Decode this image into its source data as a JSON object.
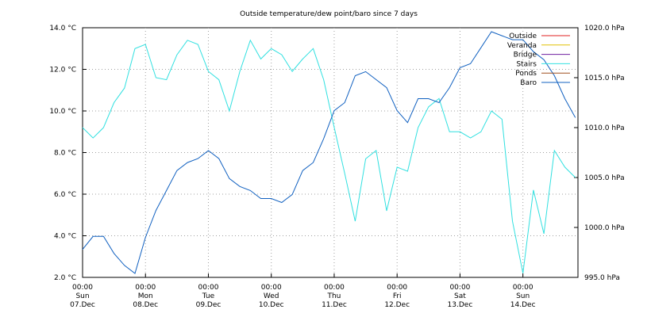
{
  "chart_data": {
    "type": "line",
    "title": "Outside temperature/dew point/baro since 7 days",
    "x": [
      0,
      4,
      8,
      12,
      16,
      20,
      24,
      28,
      32,
      36,
      40,
      44,
      48,
      52,
      56,
      60,
      64,
      68,
      72,
      76,
      80,
      84,
      88,
      92,
      96,
      100,
      104,
      108,
      112,
      116,
      120,
      124,
      128,
      132,
      136,
      140,
      144,
      148,
      152,
      156,
      160,
      164,
      168,
      172,
      176,
      180,
      184,
      188
    ],
    "xlim": [
      0,
      189
    ],
    "xticks": [
      {
        "value": 0,
        "label": [
          "00:00",
          "Sun",
          "07.Dec"
        ]
      },
      {
        "value": 24,
        "label": [
          "00:00",
          "Mon",
          "08.Dec"
        ]
      },
      {
        "value": 48,
        "label": [
          "00:00",
          "Tue",
          "09.Dec"
        ]
      },
      {
        "value": 72,
        "label": [
          "00:00",
          "Wed",
          "10.Dec"
        ]
      },
      {
        "value": 96,
        "label": [
          "00:00",
          "Thu",
          "11.Dec"
        ]
      },
      {
        "value": 120,
        "label": [
          "00:00",
          "Fri",
          "12.Dec"
        ]
      },
      {
        "value": 144,
        "label": [
          "00:00",
          "Sat",
          "13.Dec"
        ]
      },
      {
        "value": 168,
        "label": [
          "00:00",
          "Sun",
          "14.Dec"
        ]
      }
    ],
    "ylim": [
      2,
      14
    ],
    "yticks": [
      {
        "value": 2,
        "label": "2.0 °C"
      },
      {
        "value": 4,
        "label": "4.0 °C"
      },
      {
        "value": 6,
        "label": "6.0 °C"
      },
      {
        "value": 8,
        "label": "8.0 °C"
      },
      {
        "value": 10,
        "label": "10.0 °C"
      },
      {
        "value": 12,
        "label": "12.0 °C"
      },
      {
        "value": 14,
        "label": "14.0 °C"
      }
    ],
    "y2lim": [
      995,
      1020
    ],
    "y2ticks": [
      {
        "value": 995,
        "label": "995.0 hPa"
      },
      {
        "value": 1000,
        "label": "1000.0 hPa"
      },
      {
        "value": 1005,
        "label": "1005.0 hPa"
      },
      {
        "value": 1010,
        "label": "1010.0 hPa"
      },
      {
        "value": 1015,
        "label": "1015.0 hPa"
      },
      {
        "value": 1020,
        "label": "1020.0 hPa"
      }
    ],
    "grid": true,
    "legend": "top-right",
    "series": [
      {
        "name": "Outside",
        "color": "#e02020",
        "values": [
          null,
          null,
          null,
          null,
          null,
          null,
          null,
          null,
          null,
          null,
          null,
          null,
          null,
          null,
          null,
          null,
          null,
          null,
          null,
          null,
          null,
          null,
          null,
          null,
          null,
          null,
          null,
          null,
          null,
          null,
          null,
          null,
          null,
          null,
          null,
          null,
          null,
          null,
          null,
          null,
          null,
          null,
          null,
          null,
          null,
          null,
          null,
          null
        ]
      },
      {
        "name": "Veranda",
        "color": "#e0c000",
        "values": [
          null,
          null,
          null,
          null,
          null,
          null,
          null,
          null,
          null,
          null,
          null,
          null,
          null,
          null,
          null,
          null,
          null,
          null,
          null,
          null,
          null,
          null,
          null,
          null,
          null,
          null,
          null,
          null,
          null,
          null,
          null,
          null,
          null,
          null,
          null,
          null,
          null,
          null,
          null,
          null,
          null,
          null,
          null,
          null,
          null,
          null,
          null,
          null
        ]
      },
      {
        "name": "Bridge",
        "color": "#7020a0",
        "values": [
          null,
          null,
          null,
          null,
          null,
          null,
          null,
          null,
          null,
          null,
          null,
          null,
          null,
          null,
          null,
          null,
          null,
          null,
          null,
          null,
          null,
          null,
          null,
          null,
          null,
          null,
          null,
          null,
          null,
          null,
          null,
          null,
          null,
          null,
          null,
          null,
          null,
          null,
          null,
          null,
          null,
          null,
          null,
          null,
          null,
          null,
          null,
          null
        ]
      },
      {
        "name": "Stairs",
        "color": "#30e0e0",
        "values": [
          9.2,
          8.7,
          9.2,
          10.4,
          11.1,
          13.0,
          13.2,
          11.6,
          11.5,
          12.7,
          13.4,
          13.2,
          11.9,
          11.5,
          10.0,
          11.9,
          13.4,
          12.5,
          13.0,
          12.7,
          11.9,
          12.5,
          13.0,
          11.5,
          9.2,
          7.0,
          4.7,
          7.7,
          8.1,
          5.2,
          7.3,
          7.1,
          9.2,
          10.2,
          10.6,
          9.0,
          9.0,
          8.7,
          9.0,
          10.0,
          9.6,
          4.7,
          2.2,
          6.2,
          4.1,
          8.1,
          7.3,
          6.8
        ]
      },
      {
        "name": "Ponds",
        "color": "#a05020",
        "values": [
          null,
          null,
          null,
          null,
          null,
          null,
          null,
          null,
          null,
          null,
          null,
          null,
          null,
          null,
          null,
          null,
          null,
          null,
          null,
          null,
          null,
          null,
          null,
          null,
          null,
          null,
          null,
          null,
          null,
          null,
          null,
          null,
          null,
          null,
          null,
          null,
          null,
          null,
          null,
          null,
          null,
          null,
          null,
          null,
          null,
          null,
          null,
          null
        ]
      },
      {
        "name": "Baro",
        "color": "#1060c0",
        "axis": "y2",
        "values": [
          997.8,
          999.1,
          999.1,
          997.4,
          996.2,
          995.4,
          999.0,
          1001.7,
          1003.7,
          1005.7,
          1006.5,
          1006.9,
          1007.7,
          1006.9,
          1004.9,
          1004.1,
          1003.7,
          1002.9,
          1002.9,
          1002.5,
          1003.3,
          1005.7,
          1006.5,
          1008.9,
          1011.7,
          1012.5,
          1015.2,
          1015.6,
          1014.8,
          1014.0,
          1011.7,
          1010.5,
          1012.9,
          1012.9,
          1012.5,
          1014.0,
          1016.0,
          1016.4,
          1018.0,
          1019.6,
          1019.2,
          1018.8,
          1018.8,
          1017.6,
          1016.8,
          1015.2,
          1012.9,
          1011.0
        ]
      }
    ]
  }
}
